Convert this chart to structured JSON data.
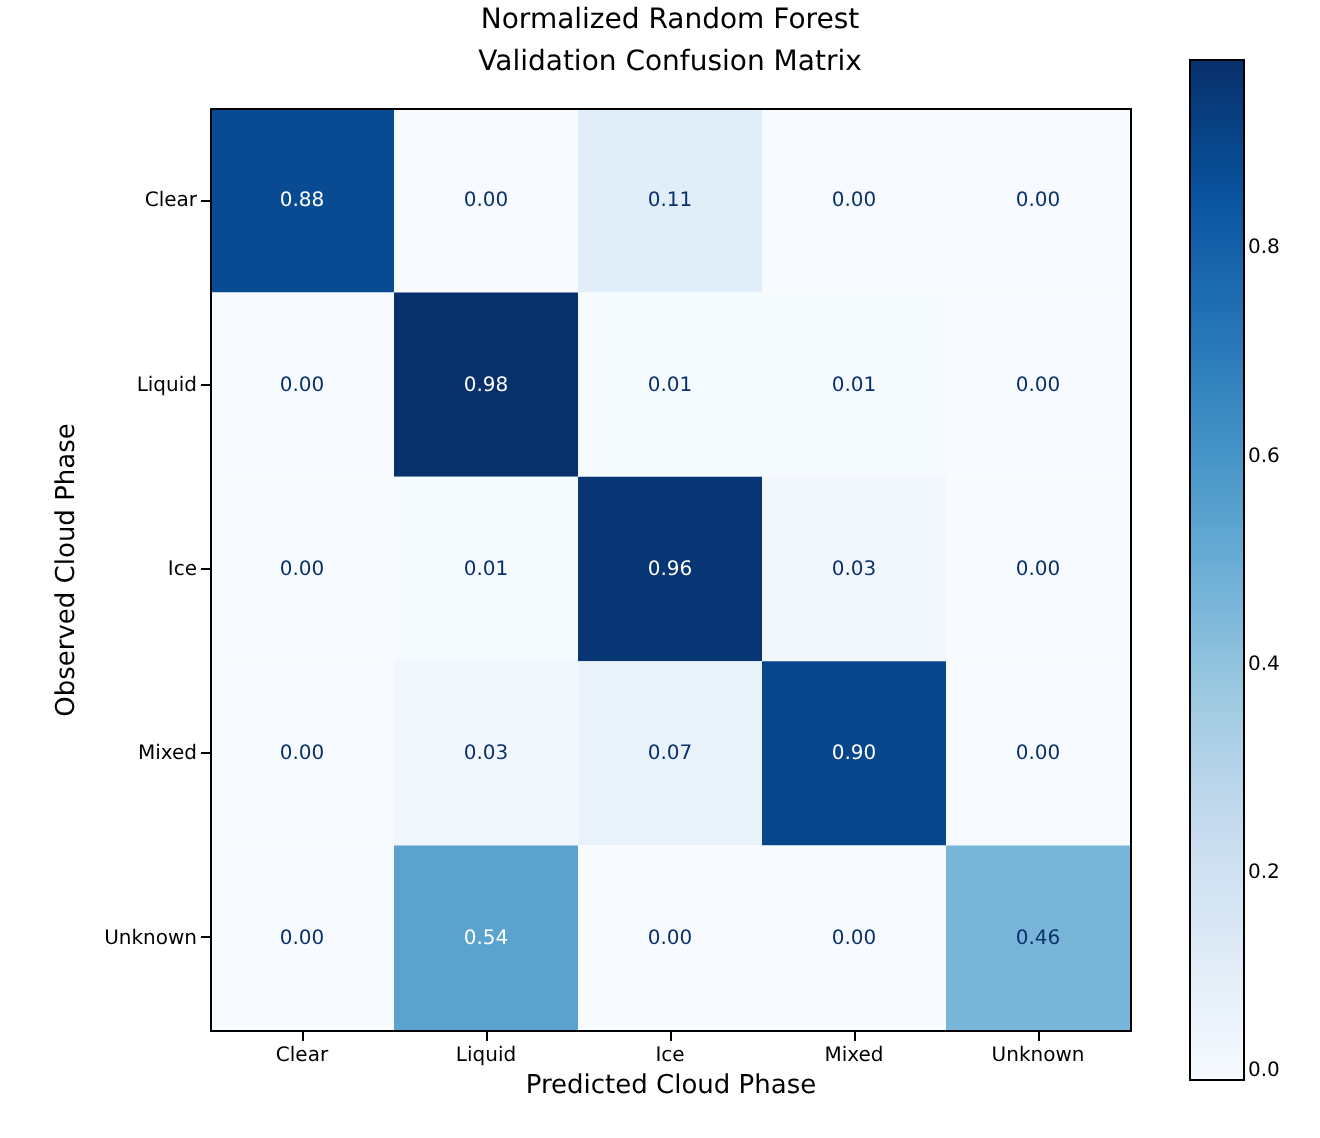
{
  "chart_data": {
    "type": "heatmap",
    "title": "Normalized Random Forest\nValidation Confusion Matrix",
    "xlabel": "Predicted Cloud Phase",
    "ylabel": "Observed Cloud Phase",
    "categories": [
      "Clear",
      "Liquid",
      "Ice",
      "Mixed",
      "Unknown"
    ],
    "y_categories": [
      "Clear",
      "Liquid",
      "Ice",
      "Mixed",
      "Unknown"
    ],
    "cells": [
      [
        0.88,
        0.0,
        0.11,
        0.0,
        0.0
      ],
      [
        0.0,
        0.98,
        0.01,
        0.01,
        0.0
      ],
      [
        0.0,
        0.01,
        0.96,
        0.03,
        0.0
      ],
      [
        0.0,
        0.03,
        0.07,
        0.9,
        0.0
      ],
      [
        0.0,
        0.54,
        0.0,
        0.0,
        0.46
      ]
    ],
    "cell_labels": [
      [
        "0.88",
        "0.00",
        "0.11",
        "0.00",
        "0.00"
      ],
      [
        "0.00",
        "0.98",
        "0.01",
        "0.01",
        "0.00"
      ],
      [
        "0.00",
        "0.01",
        "0.96",
        "0.03",
        "0.00"
      ],
      [
        "0.00",
        "0.03",
        "0.07",
        "0.90",
        "0.00"
      ],
      [
        "0.00",
        "0.54",
        "0.00",
        "0.00",
        "0.46"
      ]
    ],
    "clim": [
      0,
      0.98
    ],
    "cticks": [
      {
        "value": 0,
        "label": "0.0"
      },
      {
        "value": 0.2,
        "label": "0.2"
      },
      {
        "value": 0.4,
        "label": "0.4"
      },
      {
        "value": 0.6,
        "label": "0.6"
      },
      {
        "value": 0.8,
        "label": "0.8"
      }
    ]
  }
}
